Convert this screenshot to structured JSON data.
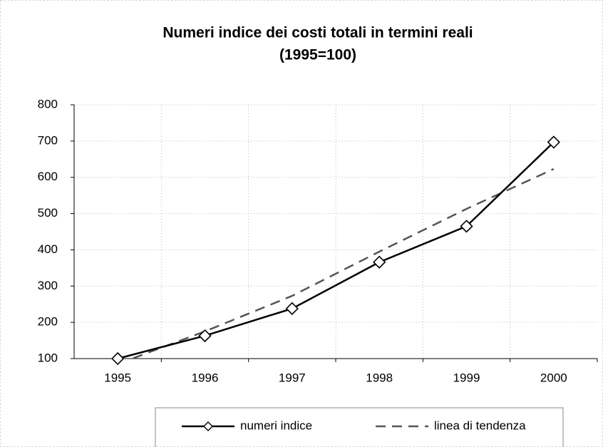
{
  "chart_data": {
    "type": "line",
    "title": "Numeri indice dei costi totali in termini reali",
    "subtitle": "(1995=100)",
    "categories": [
      "1995",
      "1996",
      "1997",
      "1998",
      "1999",
      "2000"
    ],
    "series": [
      {
        "name": "numeri indice",
        "color": "#000000",
        "dash": false,
        "marker": "diamond",
        "values": [
          100,
          163,
          238,
          366,
          465,
          697
        ]
      },
      {
        "name": "linea di tendenza",
        "color": "#555555",
        "dash": true,
        "marker": "none",
        "values": [
          85,
          175,
          273,
          395,
          513,
          623
        ]
      }
    ],
    "ylim": [
      100,
      800
    ],
    "yticks": [
      100,
      200,
      300,
      400,
      500,
      600,
      700,
      800
    ],
    "grid": true,
    "legend": "bottom"
  }
}
